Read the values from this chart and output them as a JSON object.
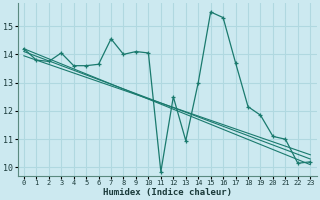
{
  "xlabel": "Humidex (Indice chaleur)",
  "bg_color": "#cce9f0",
  "grid_color": "#b0d8e0",
  "line_color": "#1a7a6e",
  "marker": "+",
  "xlim": [
    -0.5,
    23.5
  ],
  "ylim": [
    9.7,
    15.8
  ],
  "xticks": [
    0,
    1,
    2,
    3,
    4,
    5,
    6,
    7,
    8,
    9,
    10,
    11,
    12,
    13,
    14,
    15,
    16,
    17,
    18,
    19,
    20,
    21,
    22,
    23
  ],
  "yticks": [
    10,
    11,
    12,
    13,
    14,
    15
  ],
  "series": [
    [
      0,
      14.2
    ],
    [
      1,
      13.8
    ],
    [
      2,
      13.75
    ],
    [
      3,
      14.05
    ],
    [
      4,
      13.6
    ],
    [
      5,
      13.6
    ],
    [
      6,
      13.65
    ],
    [
      7,
      14.55
    ],
    [
      8,
      14.0
    ],
    [
      9,
      14.1
    ],
    [
      10,
      14.05
    ],
    [
      11,
      9.85
    ],
    [
      12,
      12.5
    ],
    [
      13,
      10.95
    ],
    [
      14,
      13.0
    ],
    [
      15,
      15.5
    ],
    [
      16,
      15.3
    ],
    [
      17,
      13.7
    ],
    [
      18,
      12.15
    ],
    [
      19,
      11.85
    ],
    [
      20,
      11.1
    ],
    [
      21,
      11.0
    ],
    [
      22,
      10.15
    ],
    [
      23,
      10.2
    ]
  ],
  "line2": [
    [
      0,
      14.2
    ],
    [
      23,
      10.1
    ]
  ],
  "line3": [
    [
      0,
      14.1
    ],
    [
      23,
      10.3
    ]
  ],
  "line4": [
    [
      0,
      13.95
    ],
    [
      23,
      10.45
    ]
  ]
}
